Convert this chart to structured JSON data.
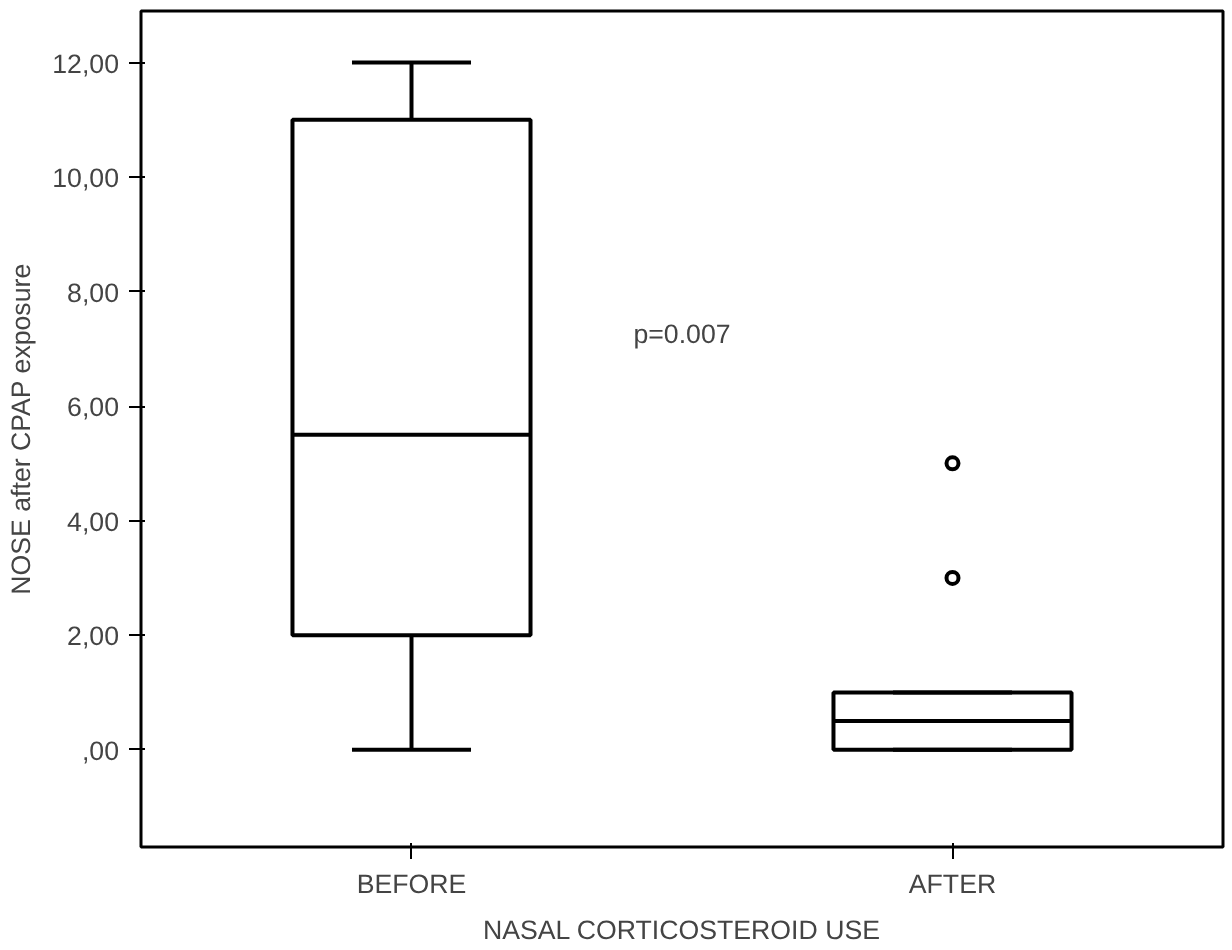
{
  "chart_data": {
    "type": "box",
    "xlabel": "NASAL CORTICOSTEROID USE",
    "ylabel": "NOSE after CPAP exposure",
    "categories": [
      "BEFORE",
      "AFTER"
    ],
    "boxes": [
      {
        "low": 0,
        "q1": 2,
        "median": 5.5,
        "q3": 11,
        "high": 12
      },
      {
        "low": 0,
        "q1": 0,
        "median": 0.5,
        "q3": 1,
        "high": 1,
        "outliers": [
          3,
          5
        ]
      }
    ],
    "ylim": [
      -1.7,
      12.9
    ],
    "yticks": [
      {
        "value": 0,
        "label": ",00"
      },
      {
        "value": 2,
        "label": "2,00"
      },
      {
        "value": 4,
        "label": "4,00"
      },
      {
        "value": 6,
        "label": "6,00"
      },
      {
        "value": 8,
        "label": "8,00"
      },
      {
        "value": 10,
        "label": "10,00"
      },
      {
        "value": 12,
        "label": "12,00"
      }
    ],
    "annotations": [
      "p=0.007"
    ],
    "grid": false
  }
}
